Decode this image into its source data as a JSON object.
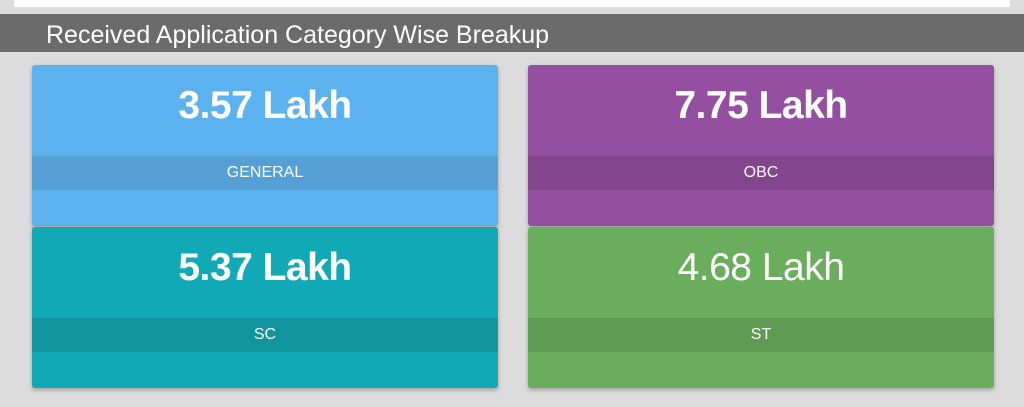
{
  "header": {
    "title": "Received Application Category Wise Breakup"
  },
  "cards": [
    {
      "id": "general",
      "value": "3.57 Lakh",
      "label": "GENERAL",
      "color": "#5cb1ef",
      "strip_color": "#54a0d6"
    },
    {
      "id": "obc",
      "value": "7.75 Lakh",
      "label": "OBC",
      "color": "#944fa1",
      "strip_color": "#83458e"
    },
    {
      "id": "sc",
      "value": "5.37 Lakh",
      "label": "SC",
      "color": "#12a9b6",
      "strip_color": "#10959f"
    },
    {
      "id": "st",
      "value": "4.68 Lakh",
      "label": "ST",
      "color": "#69ad5d",
      "strip_color": "#5e9b53"
    }
  ]
}
